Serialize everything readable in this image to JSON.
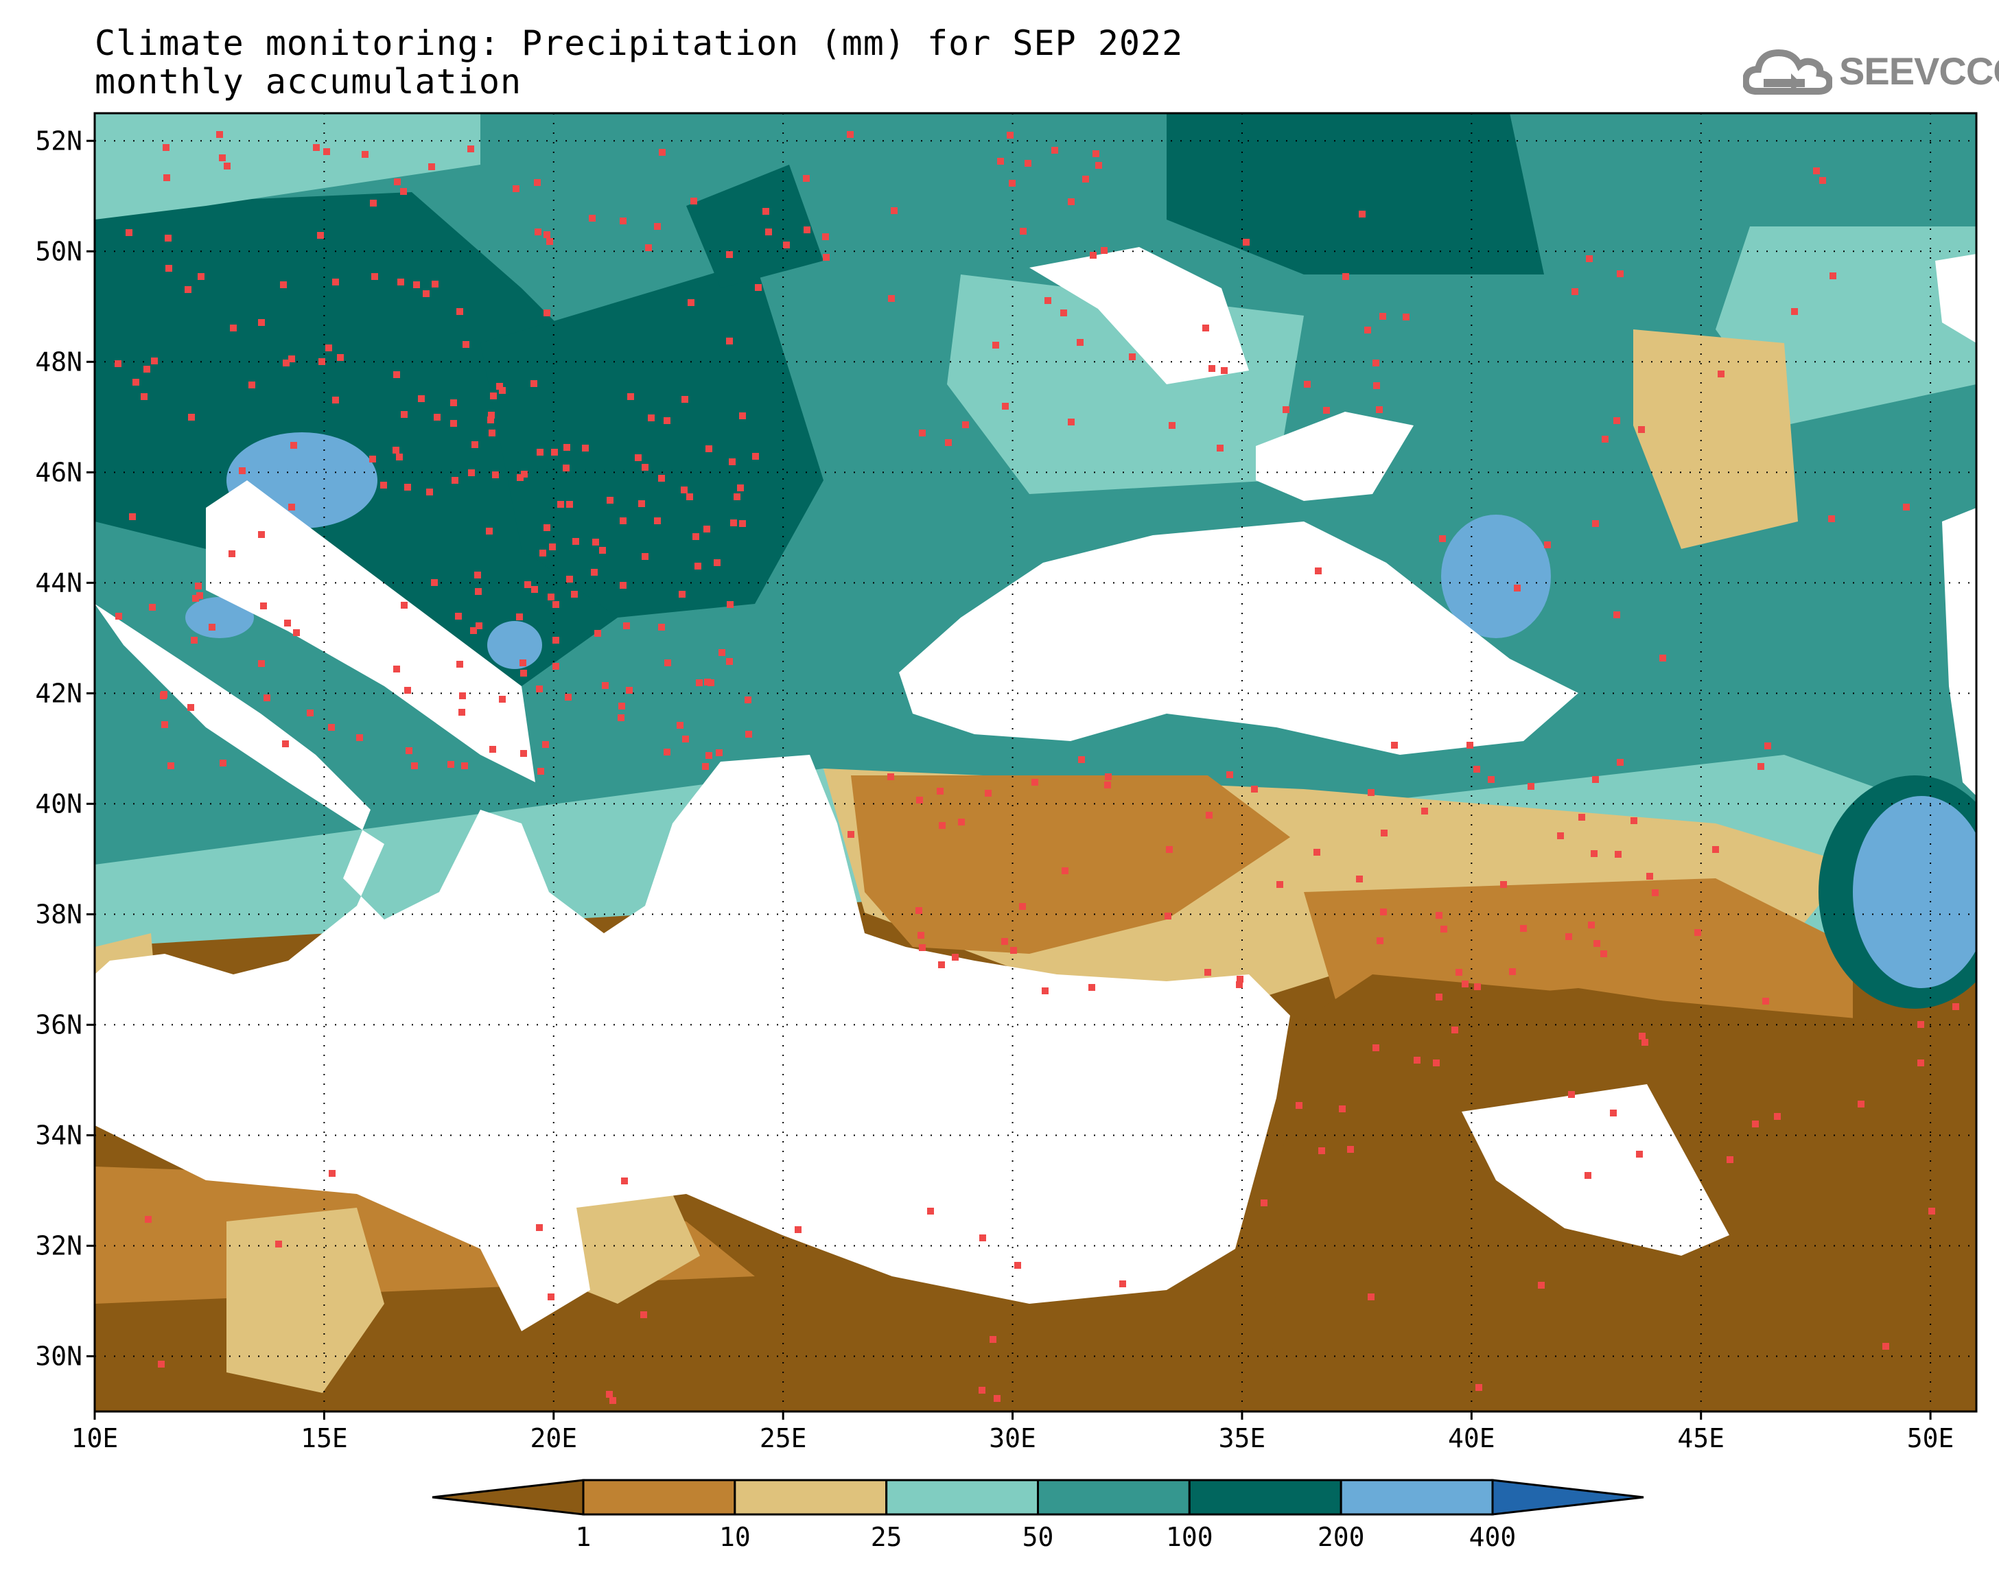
{
  "title": {
    "line1": "Climate monitoring: Precipitation (mm) for SEP 2022",
    "line2": "monthly accumulation"
  },
  "logo": {
    "text": "SEEVCCC",
    "icon": "cloud-icon"
  },
  "map": {
    "projection": "lat-lon",
    "lon_range": [
      10,
      51
    ],
    "lat_range": [
      29,
      52.5
    ],
    "x_ticks": [
      "10E",
      "15E",
      "20E",
      "25E",
      "30E",
      "35E",
      "40E",
      "45E",
      "50E"
    ],
    "y_ticks": [
      "52N",
      "50N",
      "48N",
      "46N",
      "44N",
      "42N",
      "40N",
      "38N",
      "36N",
      "34N",
      "32N",
      "30N"
    ],
    "gridlines": "dotted",
    "sea_color": "#ffffff",
    "station_marker_color": "#f04848"
  },
  "colorbar": {
    "labels": [
      "1",
      "10",
      "25",
      "50",
      "100",
      "200",
      "400"
    ],
    "colors": [
      "#8b5a14",
      "#bf8232",
      "#dfc27c",
      "#80cdc1",
      "#35978f",
      "#01665e",
      "#6aabd8",
      "#2166ac"
    ],
    "extend": "both"
  }
}
